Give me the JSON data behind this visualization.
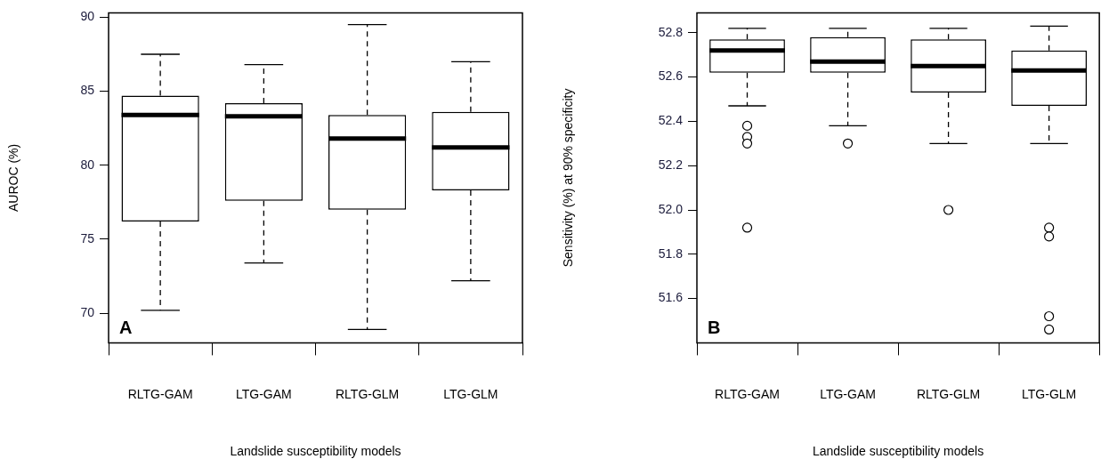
{
  "chart_data": [
    {
      "type": "box",
      "xlabel": "Landslide susceptibility models",
      "ylabel": "AUROC (%)",
      "annotations": [
        "A"
      ],
      "categories": [
        "RLTG-GAM",
        "LTG-GAM",
        "RLTG-GLM",
        "LTG-GLM"
      ],
      "ylim": [
        68,
        90.3
      ],
      "yticks": [
        70,
        75,
        80,
        85,
        90
      ],
      "boxes": [
        {
          "low": 70.2,
          "q1": 76.2,
          "median": 83.4,
          "q3": 84.7,
          "high": 87.5
        },
        {
          "low": 73.4,
          "q1": 77.6,
          "median": 83.3,
          "q3": 84.2,
          "high": 86.8
        },
        {
          "low": 68.9,
          "q1": 77.0,
          "median": 81.8,
          "q3": 83.4,
          "high": 89.5
        },
        {
          "low": 72.2,
          "q1": 78.3,
          "median": 81.2,
          "q3": 83.6,
          "high": 87.0
        }
      ]
    },
    {
      "type": "box",
      "xlabel": "Landslide susceptibility models",
      "ylabel": "Sensitivity (%) at 90% specificity",
      "annotations": [
        "B"
      ],
      "categories": [
        "RLTG-GAM",
        "LTG-GAM",
        "RLTG-GLM",
        "LTG-GLM"
      ],
      "ylim": [
        51.4,
        52.89
      ],
      "yticks": [
        {
          "value": 51.6,
          "label": "51.6"
        },
        {
          "value": 51.8,
          "label": "51.8"
        },
        {
          "value": 52,
          "label": "52.0"
        },
        {
          "value": 52.2,
          "label": "52.2"
        },
        {
          "value": 52.4,
          "label": "52.4"
        },
        {
          "value": 52.6,
          "label": "52.6"
        },
        {
          "value": 52.8,
          "label": "52.8"
        }
      ],
      "boxes": [
        {
          "low": 52.47,
          "q1": 52.62,
          "median": 52.72,
          "q3": 52.77,
          "high": 52.82,
          "outliers": [
            52.38,
            52.33,
            52.3,
            51.92
          ]
        },
        {
          "low": 52.38,
          "q1": 52.62,
          "median": 52.67,
          "q3": 52.78,
          "high": 52.82,
          "outliers": [
            52.3
          ]
        },
        {
          "low": 52.3,
          "q1": 52.53,
          "median": 52.65,
          "q3": 52.77,
          "high": 52.82,
          "outliers": [
            52.0
          ]
        },
        {
          "low": 52.3,
          "q1": 52.47,
          "median": 52.63,
          "q3": 52.72,
          "high": 52.83,
          "outliers": [
            51.92,
            51.88,
            51.52,
            51.46
          ]
        }
      ]
    }
  ]
}
